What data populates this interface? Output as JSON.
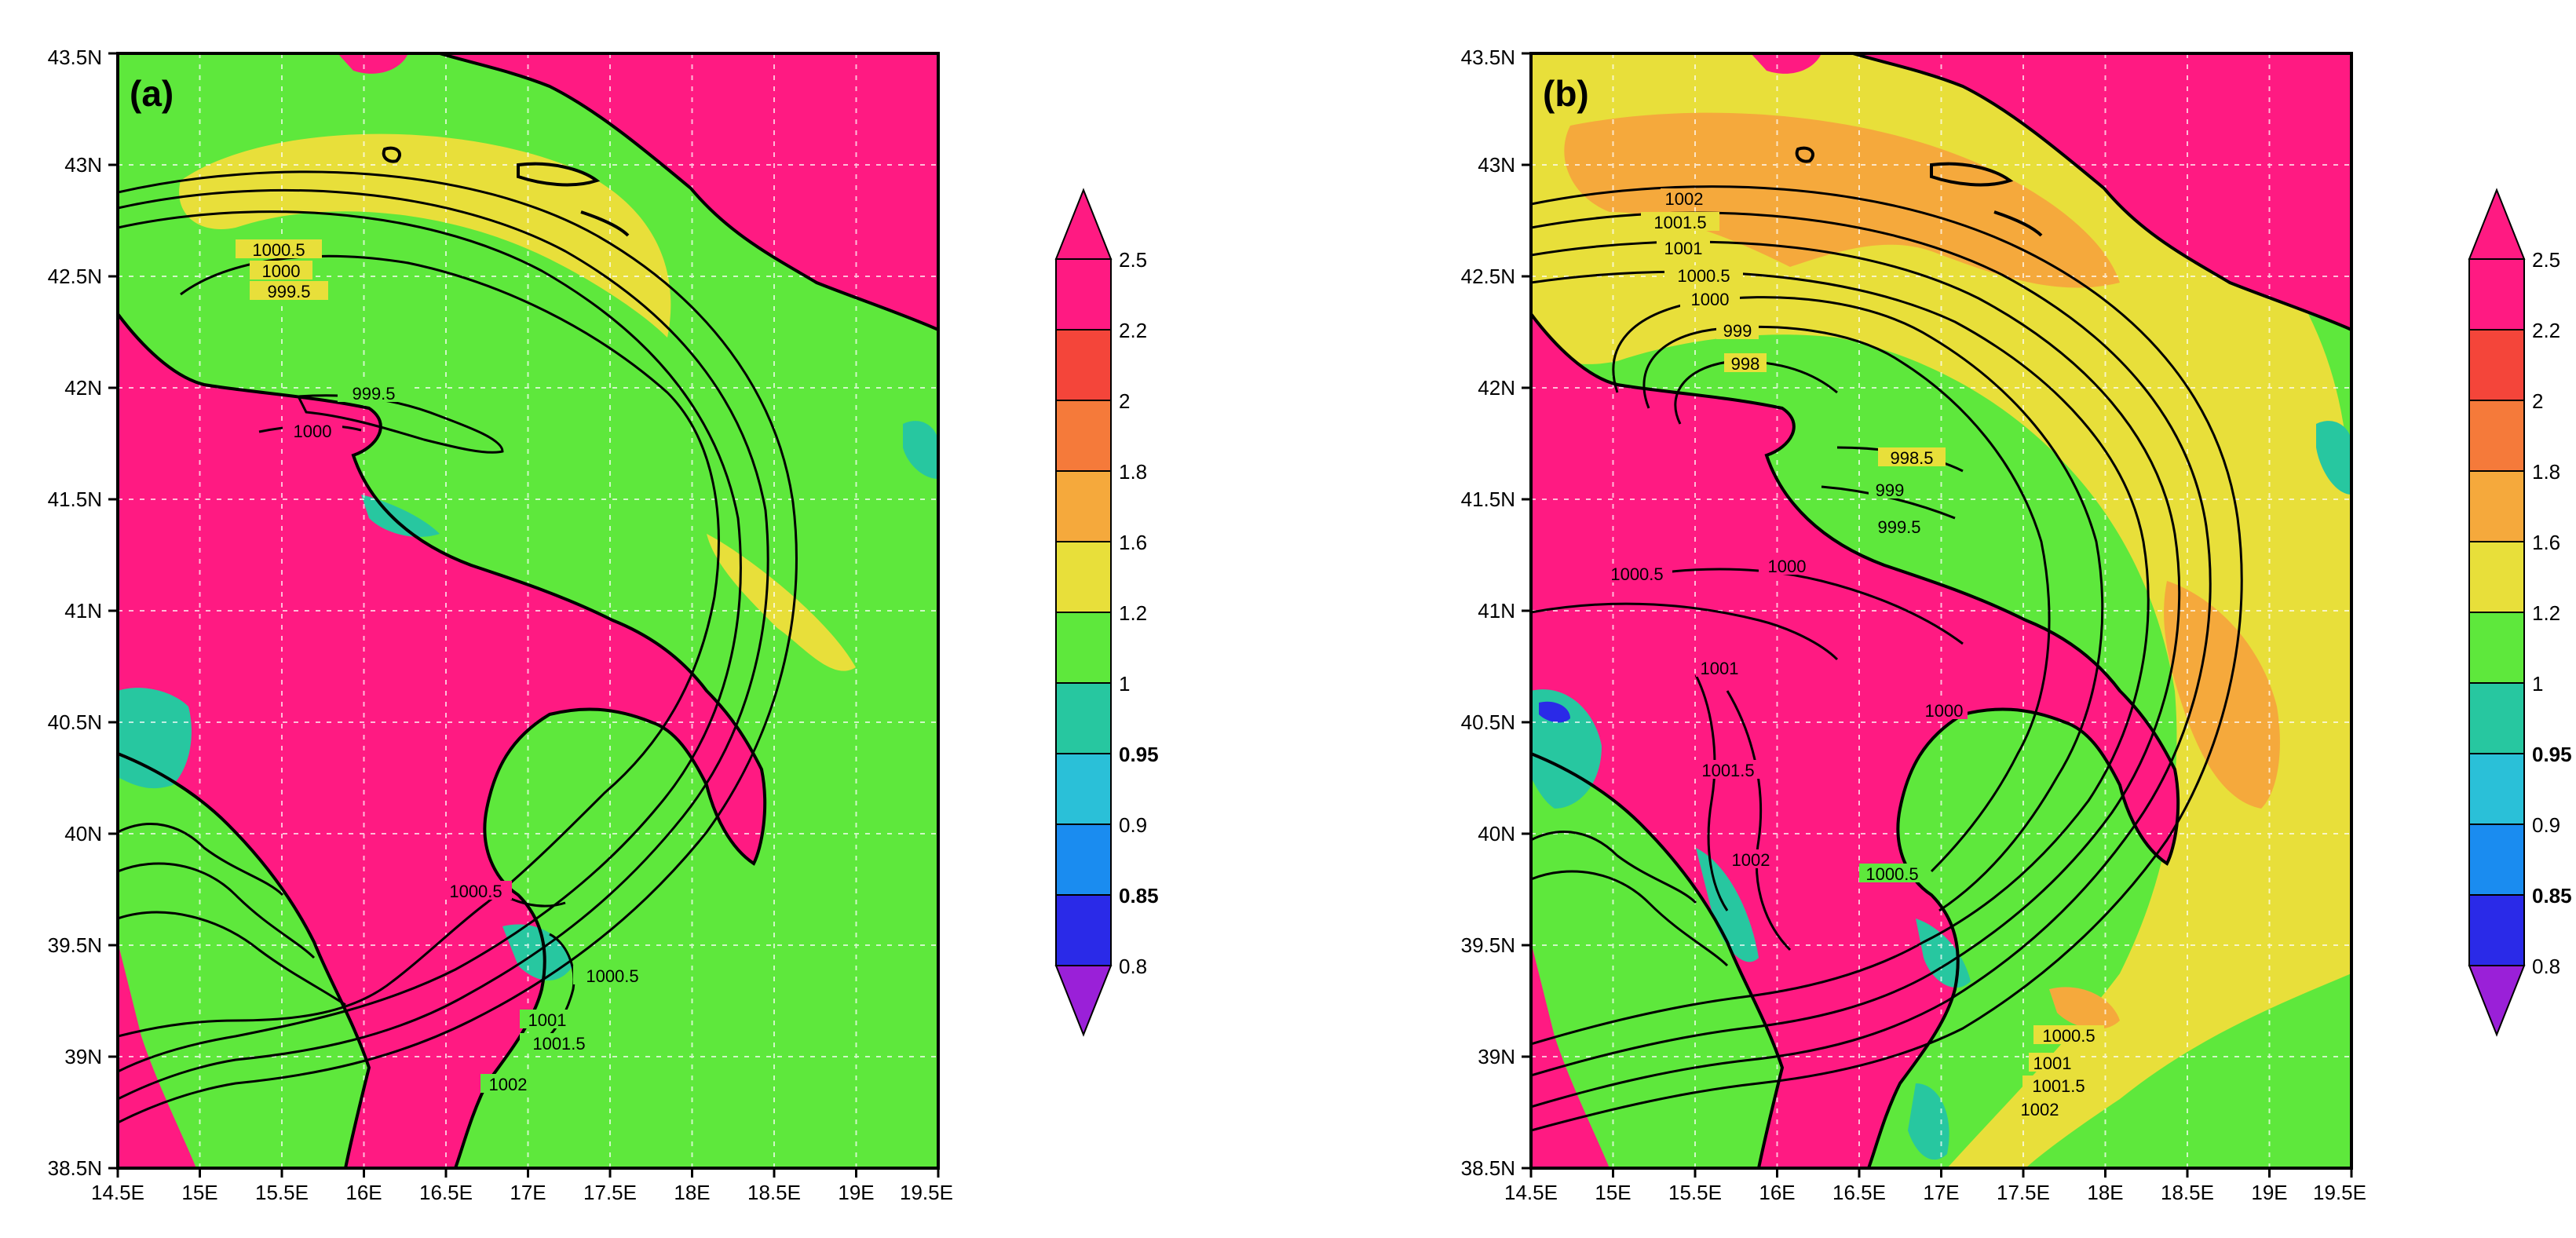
{
  "colors": {
    "sea_green": "#5ee83c",
    "land_magenta": "#ff1a82",
    "yellow": "#e8df3a",
    "orange": "#f5a93c",
    "teal": "#27c7a0",
    "grid": "#bfbfbf"
  },
  "panels": [
    {
      "label": "(a)",
      "x_ticks": [
        "14.5E",
        "15E",
        "15.5E",
        "16E",
        "16.5E",
        "17E",
        "17.5E",
        "18E",
        "18.5E",
        "19E",
        "19.5E"
      ],
      "y_ticks": [
        "38.5N",
        "39N",
        "39.5N",
        "40N",
        "40.5N",
        "41N",
        "41.5N",
        "42N",
        "42.5N",
        "43N",
        "43.5N"
      ],
      "isobar_labels": [
        "1000.5",
        "1000",
        "999.5",
        "999.5",
        "1000",
        "1000.5",
        "1000.5",
        "1001",
        "1001.5",
        "1002"
      ],
      "colorbar": [
        "2.5",
        "2.2",
        "2",
        "1.8",
        "1.6",
        "1.2",
        "1",
        "0.95",
        "0.9",
        "0.85",
        "0.8"
      ]
    },
    {
      "label": "(b)",
      "x_ticks": [
        "14.5E",
        "15E",
        "15.5E",
        "16E",
        "16.5E",
        "17E",
        "17.5E",
        "18E",
        "18.5E",
        "19E",
        "19.5E"
      ],
      "y_ticks": [
        "38.5N",
        "39N",
        "39.5N",
        "40N",
        "40.5N",
        "41N",
        "41.5N",
        "42N",
        "42.5N",
        "43N",
        "43.5N"
      ],
      "isobar_labels": [
        "1002",
        "1001.5",
        "1001",
        "1000.5",
        "1000",
        "999",
        "998",
        "998.5",
        "999",
        "999.5",
        "1000",
        "1000.5",
        "1001",
        "1001.5",
        "1000",
        "1000.5",
        "1002",
        "1000.5",
        "1001",
        "1001.5",
        "1002"
      ],
      "colorbar": [
        "2.5",
        "2.2",
        "2",
        "1.8",
        "1.6",
        "1.2",
        "1",
        "0.95",
        "0.9",
        "0.85",
        "0.8"
      ]
    }
  ]
}
